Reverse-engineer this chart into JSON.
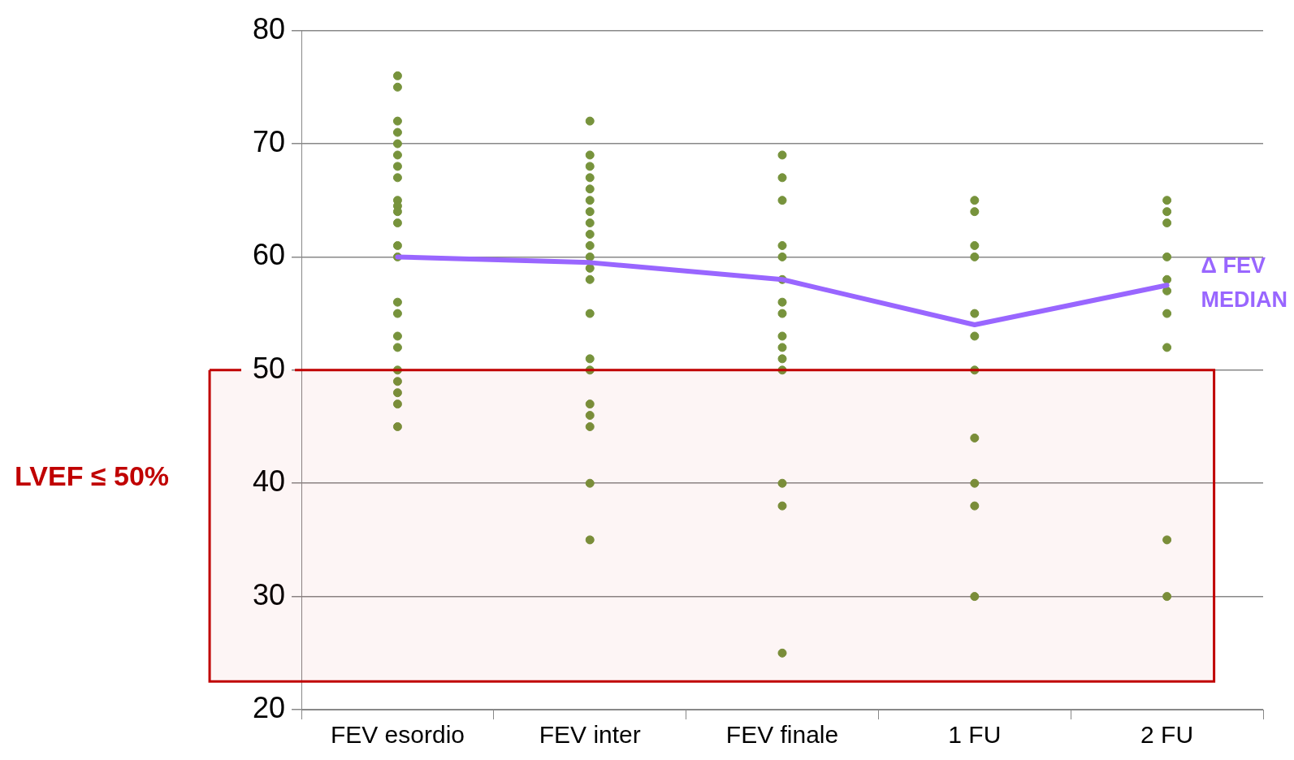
{
  "chart_data": {
    "type": "scatter",
    "categories": [
      "FEV esordio",
      "FEV inter",
      "FEV finale",
      "1 FU",
      "2 FU"
    ],
    "series": [
      {
        "color": "#77933c",
        "marker": "circle",
        "x": [
          "FEV esordio",
          "FEV esordio",
          "FEV esordio",
          "FEV esordio",
          "FEV esordio",
          "FEV esordio",
          "FEV esordio",
          "FEV esordio",
          "FEV esordio",
          "FEV esordio",
          "FEV esordio",
          "FEV esordio",
          "FEV esordio",
          "FEV esordio",
          "FEV esordio",
          "FEV esordio",
          "FEV esordio",
          "FEV esordio",
          "FEV esordio",
          "FEV esordio",
          "FEV esordio",
          "FEV esordio",
          "FEV esordio",
          "FEV inter",
          "FEV inter",
          "FEV inter",
          "FEV inter",
          "FEV inter",
          "FEV inter",
          "FEV inter",
          "FEV inter",
          "FEV inter",
          "FEV inter",
          "FEV inter",
          "FEV inter",
          "FEV inter",
          "FEV inter",
          "FEV inter",
          "FEV inter",
          "FEV inter",
          "FEV inter",
          "FEV inter",
          "FEV inter",
          "FEV inter",
          "FEV finale",
          "FEV finale",
          "FEV finale",
          "FEV finale",
          "FEV finale",
          "FEV finale",
          "FEV finale",
          "FEV finale",
          "FEV finale",
          "FEV finale",
          "FEV finale",
          "FEV finale",
          "FEV finale",
          "FEV finale",
          "FEV finale",
          "1 FU",
          "1 FU",
          "1 FU",
          "1 FU",
          "1 FU",
          "1 FU",
          "1 FU",
          "1 FU",
          "1 FU",
          "1 FU",
          "1 FU",
          "2 FU",
          "2 FU",
          "2 FU",
          "2 FU",
          "2 FU",
          "2 FU",
          "2 FU",
          "2 FU",
          "2 FU",
          "2 FU"
        ],
        "values": [
          76,
          75,
          72,
          71,
          70,
          69,
          68,
          67,
          65,
          64.5,
          64,
          63,
          61,
          60,
          56,
          55,
          53,
          52,
          50,
          49,
          48,
          47,
          45,
          72,
          69,
          68,
          67,
          66,
          65,
          64,
          63,
          62,
          61,
          60,
          59,
          58,
          55,
          51,
          50,
          47,
          46,
          45,
          40,
          35,
          69,
          67,
          65,
          61,
          60,
          58,
          56,
          55,
          53,
          52,
          51,
          50,
          40,
          38,
          25,
          65,
          64,
          61,
          60,
          55,
          53,
          50,
          44,
          40,
          38,
          30,
          65,
          64,
          63,
          60,
          58,
          57,
          55,
          52,
          35,
          30
        ]
      },
      {
        "type": "line",
        "name": "Δ FEV MEDIAN",
        "color": "#9966ff",
        "values": [
          60,
          59.5,
          58,
          54,
          57.5
        ]
      }
    ],
    "ylim": [
      20,
      80
    ],
    "yticks": [
      20,
      30,
      40,
      50,
      60,
      70,
      80
    ],
    "grid": "y",
    "legend": false,
    "bands": [
      {
        "axis": "y",
        "from": 22.5,
        "to": 50,
        "label": "LVEF ≤ 50%",
        "color": "#c00000"
      }
    ]
  }
}
